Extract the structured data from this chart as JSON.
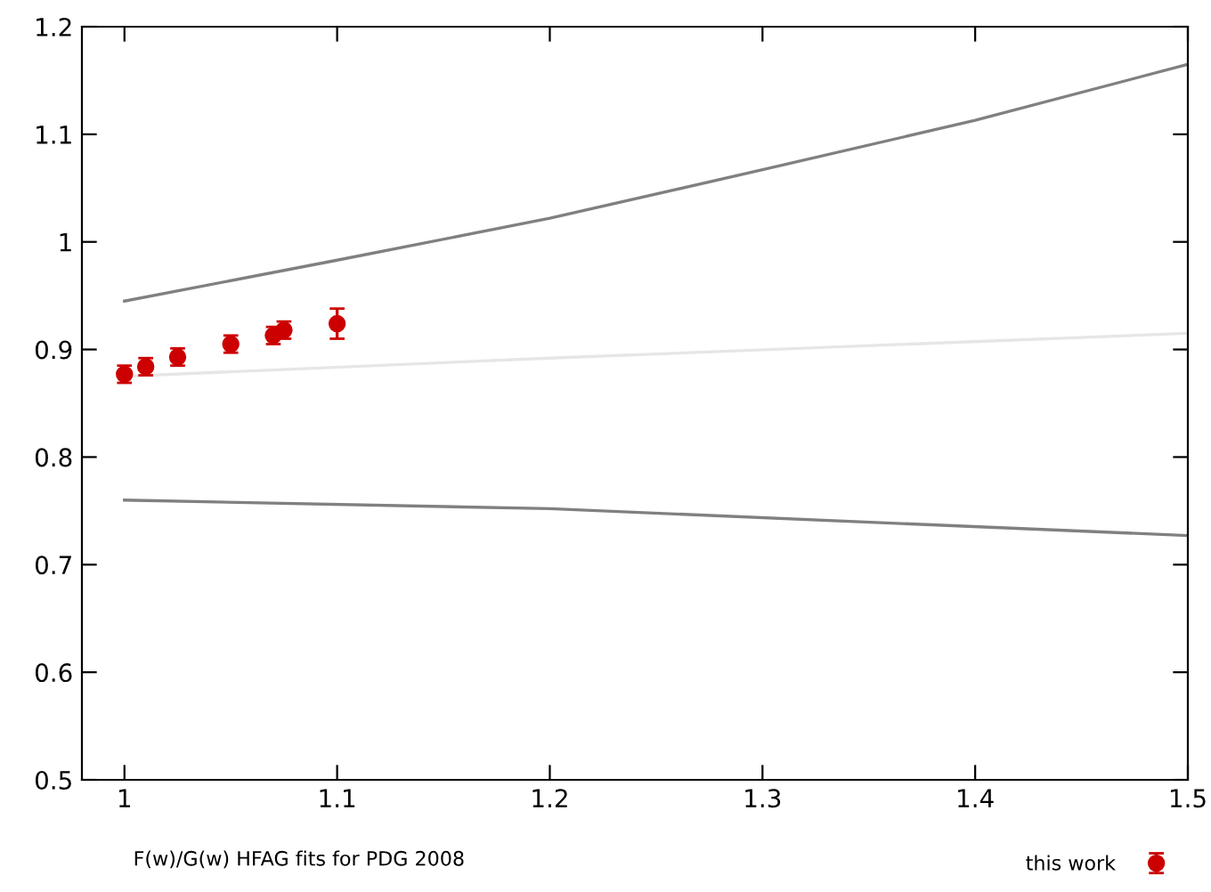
{
  "chart_data": {
    "type": "scatter",
    "xlim": [
      0.98,
      1.5
    ],
    "ylim": [
      0.5,
      1.2
    ],
    "xticks": [
      1,
      1.1,
      1.2,
      1.3,
      1.4,
      1.5
    ],
    "yticks": [
      0.5,
      0.6,
      0.7,
      0.8,
      0.9,
      1,
      1.1,
      1.2
    ],
    "grid": false,
    "legend": "bottom right",
    "annotations": [
      "F(w)/G(w) HFAG fits for PDG 2008"
    ],
    "series": [
      {
        "type": "line",
        "color": "#808080",
        "line_style": "solid",
        "x": [
          1,
          1.1,
          1.2,
          1.3,
          1.4,
          1.5
        ],
        "values": [
          0.945,
          0.983,
          1.022,
          1.067,
          1.113,
          1.165
        ]
      },
      {
        "type": "line",
        "color": "#e6e6e6",
        "line_style": "solid",
        "x": [
          1,
          1.2,
          1.5
        ],
        "values": [
          0.875,
          0.892,
          0.915
        ]
      },
      {
        "type": "line",
        "color": "#808080",
        "line_style": "solid",
        "x": [
          1,
          1.2,
          1.5
        ],
        "values": [
          0.76,
          0.752,
          0.727
        ]
      },
      {
        "name": "this work",
        "marker": "circle",
        "color": "#cc0000",
        "x": [
          1,
          1.01,
          1.025,
          1.05,
          1.07,
          1.075,
          1.1
        ],
        "values": [
          0.877,
          0.884,
          0.893,
          0.905,
          0.913,
          0.918,
          0.924
        ],
        "errors": [
          0.008,
          0.008,
          0.008,
          0.008,
          0.008,
          0.008,
          0.014
        ]
      }
    ]
  }
}
